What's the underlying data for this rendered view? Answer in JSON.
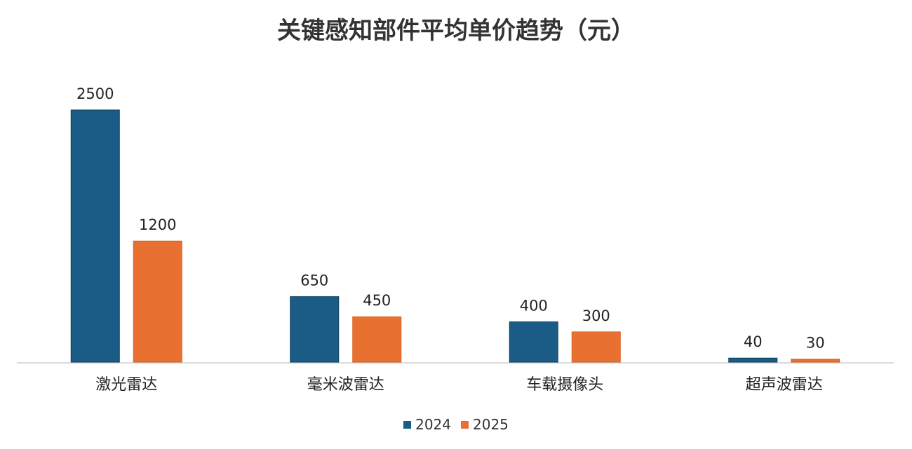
{
  "chart_data": {
    "type": "bar",
    "title": "关键感知部件平均单价趋势（元）",
    "categories": [
      "激光雷达",
      "毫米波雷达",
      "车载摄像头",
      "超声波雷达"
    ],
    "series": [
      {
        "name": "2024",
        "values": [
          2500,
          650,
          400,
          40
        ],
        "color": "#1a5c85"
      },
      {
        "name": "2025",
        "values": [
          1200,
          450,
          300,
          30
        ],
        "color": "#e87132"
      }
    ],
    "xlabel": "",
    "ylabel": "",
    "ylim": [
      0,
      2500
    ],
    "grid": false,
    "legend": "bottom"
  }
}
